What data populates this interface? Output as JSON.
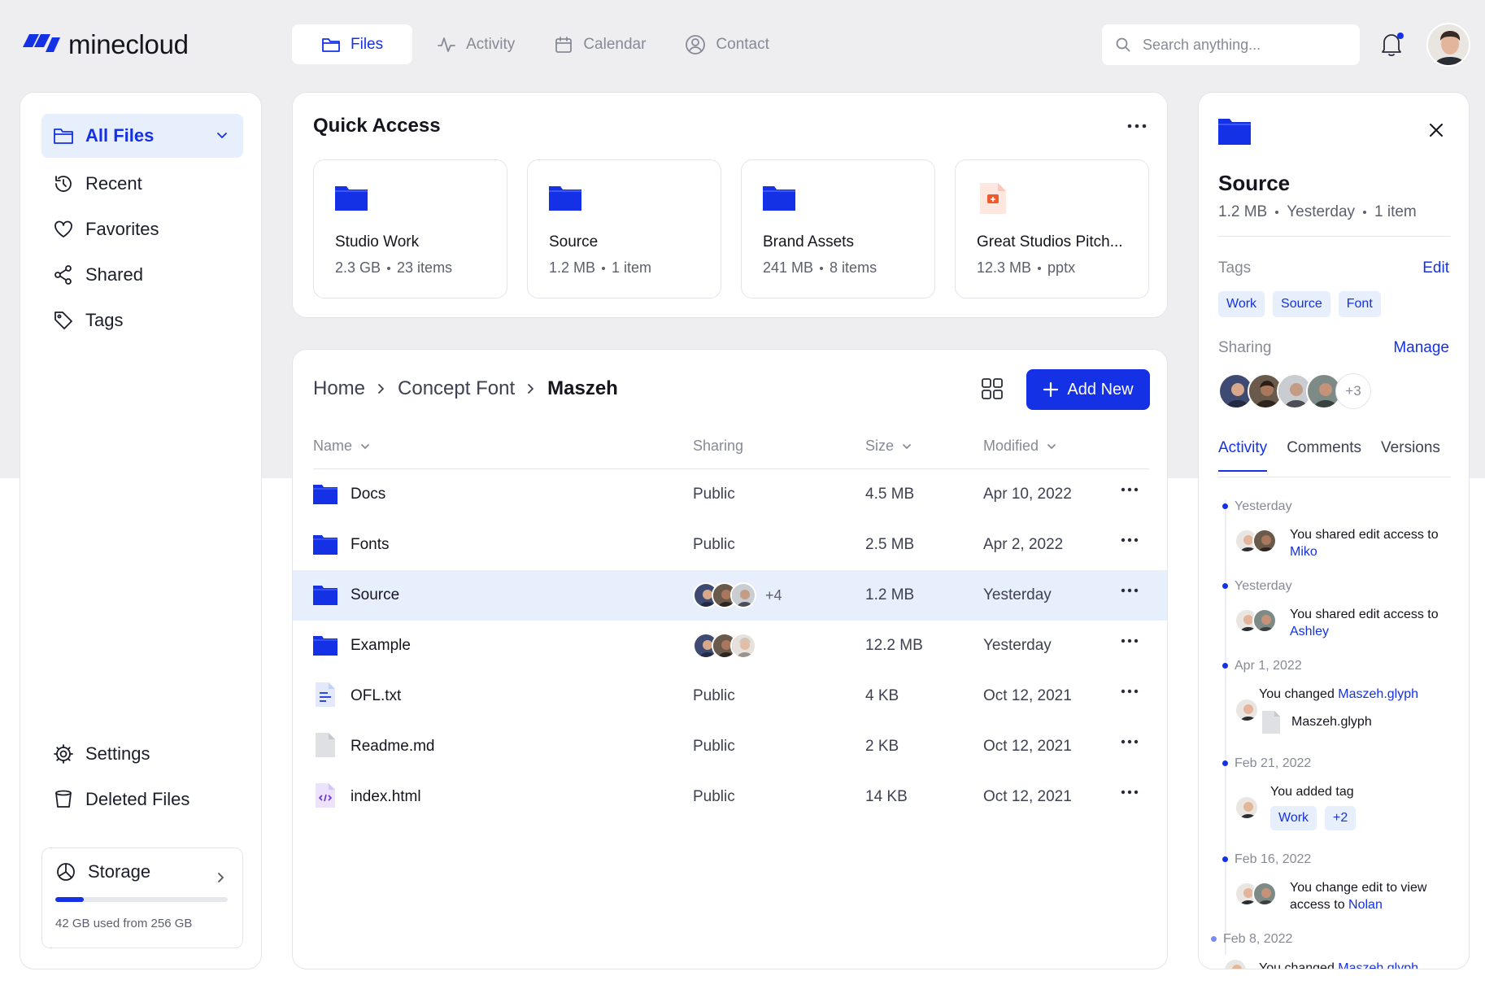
{
  "app": {
    "name": "minecloud"
  },
  "nav": [
    {
      "label": "Files",
      "icon": "folder-icon",
      "active": true
    },
    {
      "label": "Activity",
      "icon": "activity-icon"
    },
    {
      "label": "Calendar",
      "icon": "calendar-icon"
    },
    {
      "label": "Contact",
      "icon": "user-circle-icon"
    }
  ],
  "search": {
    "placeholder": "Search anything..."
  },
  "sidebar": {
    "items": [
      {
        "label": "All Files"
      },
      {
        "label": "Recent"
      },
      {
        "label": "Favorites"
      },
      {
        "label": "Shared"
      },
      {
        "label": "Tags"
      }
    ],
    "bottom": [
      {
        "label": "Settings"
      },
      {
        "label": "Deleted Files"
      }
    ],
    "storage": {
      "label": "Storage",
      "used_text": "42 GB used from 256 GB",
      "used_fraction": 0.164
    }
  },
  "quick_access": {
    "title": "Quick Access",
    "cards": [
      {
        "name": "Studio Work",
        "size": "2.3 GB",
        "detail": "23 items",
        "icon": "folder-icon"
      },
      {
        "name": "Source",
        "size": "1.2 MB",
        "detail": "1 item",
        "icon": "folder-icon"
      },
      {
        "name": "Brand Assets",
        "size": "241 MB",
        "detail": "8 items",
        "icon": "folder-icon"
      },
      {
        "name": "Great Studios Pitch...",
        "size": "12.3 MB",
        "detail": "pptx",
        "icon": "presentation-file-icon"
      }
    ]
  },
  "files": {
    "breadcrumb": [
      "Home",
      "Concept Font",
      "Maszeh"
    ],
    "add_new_label": "Add New",
    "columns": {
      "name": "Name",
      "sharing": "Sharing",
      "size": "Size",
      "modified": "Modified"
    },
    "rows": [
      {
        "name": "Docs",
        "type": "folder",
        "sharing": "Public",
        "size": "4.5 MB",
        "modified": "Apr 10, 2022"
      },
      {
        "name": "Fonts",
        "type": "folder",
        "sharing": "Public",
        "size": "2.5 MB",
        "modified": "Apr 2, 2022"
      },
      {
        "name": "Source",
        "type": "folder",
        "sharing": "",
        "sharing_more": "+4",
        "size": "1.2 MB",
        "modified": "Yesterday",
        "selected": true
      },
      {
        "name": "Example",
        "type": "folder",
        "sharing": "",
        "size": "12.2 MB",
        "modified": "Yesterday"
      },
      {
        "name": "OFL.txt",
        "type": "text-file",
        "sharing": "Public",
        "size": "4 KB",
        "modified": "Oct 12, 2021"
      },
      {
        "name": "Readme.md",
        "type": "blank-file",
        "sharing": "Public",
        "size": "2 KB",
        "modified": "Oct 12, 2021"
      },
      {
        "name": "index.html",
        "type": "code-file",
        "sharing": "Public",
        "size": "14 KB",
        "modified": "Oct 12, 2021"
      }
    ]
  },
  "details": {
    "title": "Source",
    "size": "1.2 MB",
    "modified": "Yesterday",
    "items": "1 item",
    "tags_label": "Tags",
    "edit_label": "Edit",
    "tags": [
      "Work",
      "Source",
      "Font"
    ],
    "sharing_label": "Sharing",
    "manage_label": "Manage",
    "sharing_more": "+3",
    "tabs": [
      "Activity",
      "Comments",
      "Versions"
    ],
    "activity": [
      {
        "date": "Yesterday",
        "text": "You shared edit access to",
        "highlight": "Miko"
      },
      {
        "date": "Yesterday",
        "text": "You shared edit access to",
        "highlight": "Ashley"
      },
      {
        "date": "Apr 1, 2022",
        "text": "You changed",
        "highlight": "Maszeh.glyph",
        "file": "Maszeh.glyph"
      },
      {
        "date": "Feb 21, 2022",
        "text": "You added tag",
        "tags": [
          "Work",
          "+2"
        ]
      },
      {
        "date": "Feb 16, 2022",
        "text": "You change edit to view access to",
        "highlight": "Nolan"
      },
      {
        "date": "Feb 8, 2022",
        "text": "You changed",
        "highlight": "Maszeh.glyph"
      }
    ]
  },
  "colors": {
    "accent": "#1431e6",
    "selected_row": "#e8effc",
    "tag_bg": "#e7eefc"
  }
}
